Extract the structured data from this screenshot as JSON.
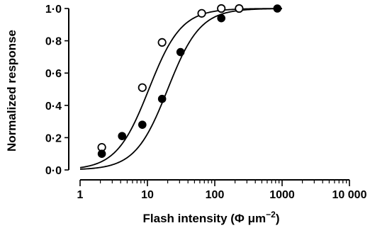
{
  "chart_data": {
    "type": "scatter",
    "xscale": "log",
    "xlim": [
      1,
      10000
    ],
    "ylim": [
      0,
      1
    ],
    "xlabel": "Flash intensity (Φ μm",
    "xlabel_superscript": "−2",
    "xlabel_close": ")",
    "ylabel": "Normalized response",
    "x_ticks": [
      1,
      10,
      100,
      1000,
      10000
    ],
    "x_tick_labels": [
      "1",
      "10",
      "100",
      "1000",
      "10 000"
    ],
    "y_ticks": [
      0,
      0.2,
      0.4,
      0.6,
      0.8,
      1.0
    ],
    "y_tick_labels": [
      "0·0",
      "0·2",
      "0·4",
      "0·6",
      "0·8",
      "1·0"
    ],
    "grid": false,
    "series": [
      {
        "marker": "open-circle",
        "x": [
          2.1,
          8.4,
          16.5,
          64,
          125,
          230
        ],
        "y": [
          0.14,
          0.51,
          0.79,
          0.97,
          1.0,
          1.0
        ],
        "fit": {
          "half_saturation": 10.5,
          "hill": 1.8
        }
      },
      {
        "marker": "filled-circle",
        "x": [
          2.1,
          4.2,
          8.4,
          16.5,
          31,
          125,
          850
        ],
        "y": [
          0.1,
          0.21,
          0.28,
          0.44,
          0.73,
          0.94,
          1.0
        ],
        "fit": {
          "half_saturation": 20,
          "hill": 1.8
        }
      }
    ]
  }
}
